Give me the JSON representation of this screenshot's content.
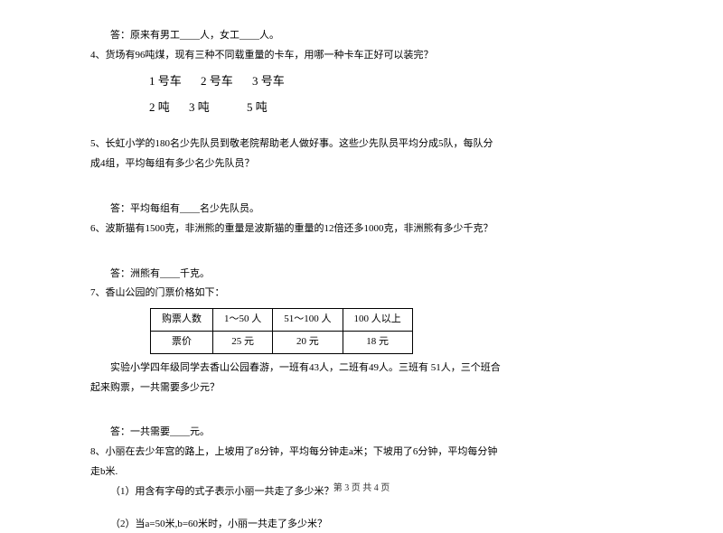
{
  "q3_answer": "答：原来有男工____人，女工____人。",
  "q4": "4、货场有96吨煤，现有三种不同载重量的卡车，用哪一种卡车正好可以装完？",
  "trucks_header": {
    "c1": "1 号车",
    "c2": "2 号车",
    "c3": "3 号车"
  },
  "trucks_weight": {
    "c1": "2 吨",
    "c2": "3 吨",
    "c3": "5 吨"
  },
  "q5a": "5、长虹小学的180名少先队员到敬老院帮助老人做好事。这些少先队员平均分成5队，每队分",
  "q5b": "成4组，平均每组有多少名少先队员？",
  "q5_answer": "答：平均每组有____名少先队员。",
  "q6": "6、波斯猫有1500克，非洲熊的重量是波斯猫的重量的12倍还多1000克，非洲熊有多少千克？",
  "q6_answer": "答：洲熊有____千克。",
  "q7": "7、香山公园的门票价格如下：",
  "ticket": {
    "header": {
      "c0": "购票人数",
      "c1": "1～50 人",
      "c2": "51～100 人",
      "c3": "100 人以上"
    },
    "row": {
      "c0": "票价",
      "c1": "25 元",
      "c2": "20 元",
      "c3": "18 元"
    }
  },
  "q7a": "实验小学四年级同学去香山公园春游，一班有43人，二班有49人。三班有  51人，三个班合",
  "q7b": "起来购票，一共需要多少元？",
  "q7_answer": "答：一共需要____元。",
  "q8a": "8、小丽在去少年宫的路上，上坡用了8分钟，平均每分钟走a米；下坡用了6分钟，平均每分钟",
  "q8b": "走b米.",
  "q8_1": "（1）用含有字母的式子表示小丽一共走了多少米？",
  "q8_2": "（2）当a=50米,b=60米时，小丽一共走了多少米？",
  "footer": "第  3  页  共  4  页"
}
